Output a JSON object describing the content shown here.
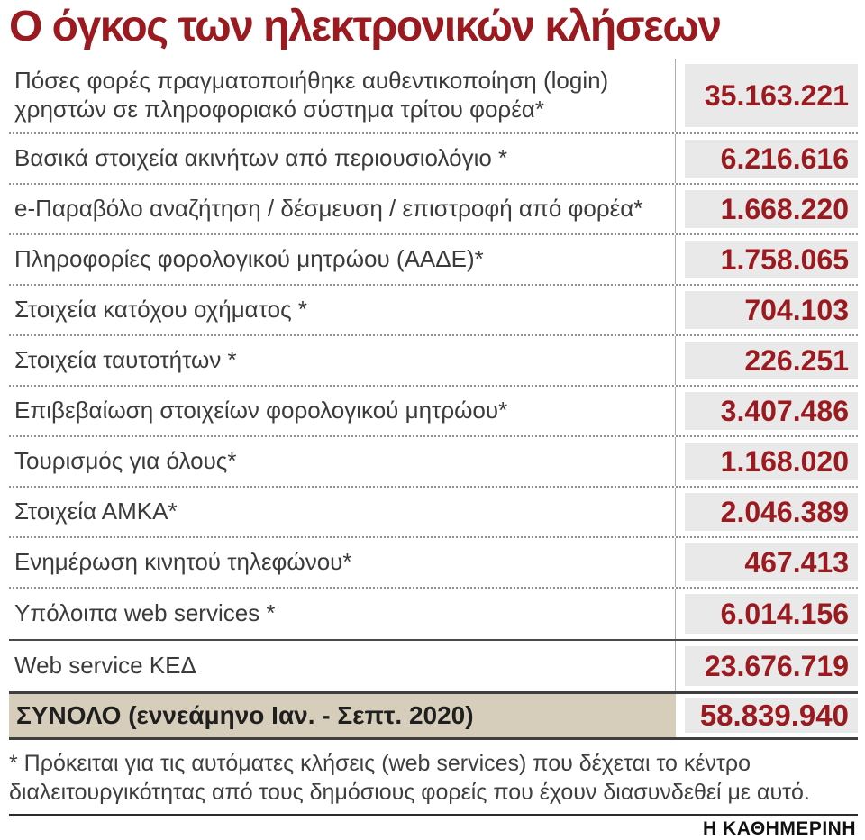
{
  "title": "Ο όγκος των ηλεκτρονικών κλήσεων",
  "rows": [
    {
      "label": "Πόσες φορές πραγματοποιήθηκε αυθεντικοποίηση (login) χρηστών σε πληροφοριακό σύστημα τρίτου φορέα*",
      "value": "35.163.221"
    },
    {
      "label": "Βασικά στοιχεία ακινήτων από περιουσιολόγιο *",
      "value": "6.216.616"
    },
    {
      "label": "e-Παραβόλο αναζήτηση / δέσμευση / επιστροφή από φορέα*",
      "value": "1.668.220"
    },
    {
      "label": "Πληροφορίες φορολογικού μητρώου (ΑΑΔΕ)*",
      "value": "1.758.065"
    },
    {
      "label": "Στοιχεία κατόχου οχήματος *",
      "value": "704.103"
    },
    {
      "label": "Στοιχεία ταυτοτήτων *",
      "value": "226.251"
    },
    {
      "label": "Επιβεβαίωση στοιχείων φορολογικού μητρώου*",
      "value": "3.407.486"
    },
    {
      "label": "Τουρισμός για όλους*",
      "value": "1.168.020"
    },
    {
      "label": "Στοιχεία ΑΜΚΑ*",
      "value": "2.046.389"
    },
    {
      "label": "Ενημέρωση κινητού τηλεφώνου*",
      "value": "467.413"
    },
    {
      "label": "Υπόλοιπα web services *",
      "value": "6.014.156"
    },
    {
      "label": "Web service ΚΕΔ",
      "value": "23.676.719"
    }
  ],
  "total": {
    "label": "ΣΥΝΟΛΟ (εννεάμηνο Ιαν. - Σεπτ. 2020)",
    "value": "58.839.940"
  },
  "footnote": "* Πρόκειται για τις αυτόματες κλήσεις (web services) που δέχεται το κέντρο διαλειτουργικότητας από τους δημόσιους φορείς που έχουν διασυνδεθεί με αυτό.",
  "source": "Η ΚΑΘΗΜΕΡΙΝΗ",
  "colors": {
    "accent_red": "#9a1a1f",
    "value_bg": "#e9e9e9",
    "total_bg": "#d6cdba"
  },
  "chart_data": {
    "type": "table",
    "title": "Ο όγκος των ηλεκτρονικών κλήσεων",
    "categories": [
      "Πόσες φορές πραγματοποιήθηκε αυθεντικοποίηση (login) χρηστών σε πληροφοριακό σύστημα τρίτου φορέα",
      "Βασικά στοιχεία ακινήτων από περιουσιολόγιο",
      "e-Παραβόλο αναζήτηση / δέσμευση / επιστροφή από φορέα",
      "Πληροφορίες φορολογικού μητρώου (ΑΑΔΕ)",
      "Στοιχεία κατόχου οχήματος",
      "Στοιχεία ταυτοτήτων",
      "Επιβεβαίωση στοιχείων φορολογικού μητρώου",
      "Τουρισμός για όλους",
      "Στοιχεία ΑΜΚΑ",
      "Ενημέρωση κινητού τηλεφώνου",
      "Υπόλοιπα web services",
      "Web service ΚΕΔ"
    ],
    "values": [
      35163221,
      6216616,
      1668220,
      1758065,
      704103,
      226251,
      3407486,
      1168020,
      2046389,
      467413,
      6014156,
      23676719
    ],
    "total": {
      "label": "ΣΥΝΟΛΟ (εννεάμηνο Ιαν. - Σεπτ. 2020)",
      "value": 58839940
    }
  }
}
